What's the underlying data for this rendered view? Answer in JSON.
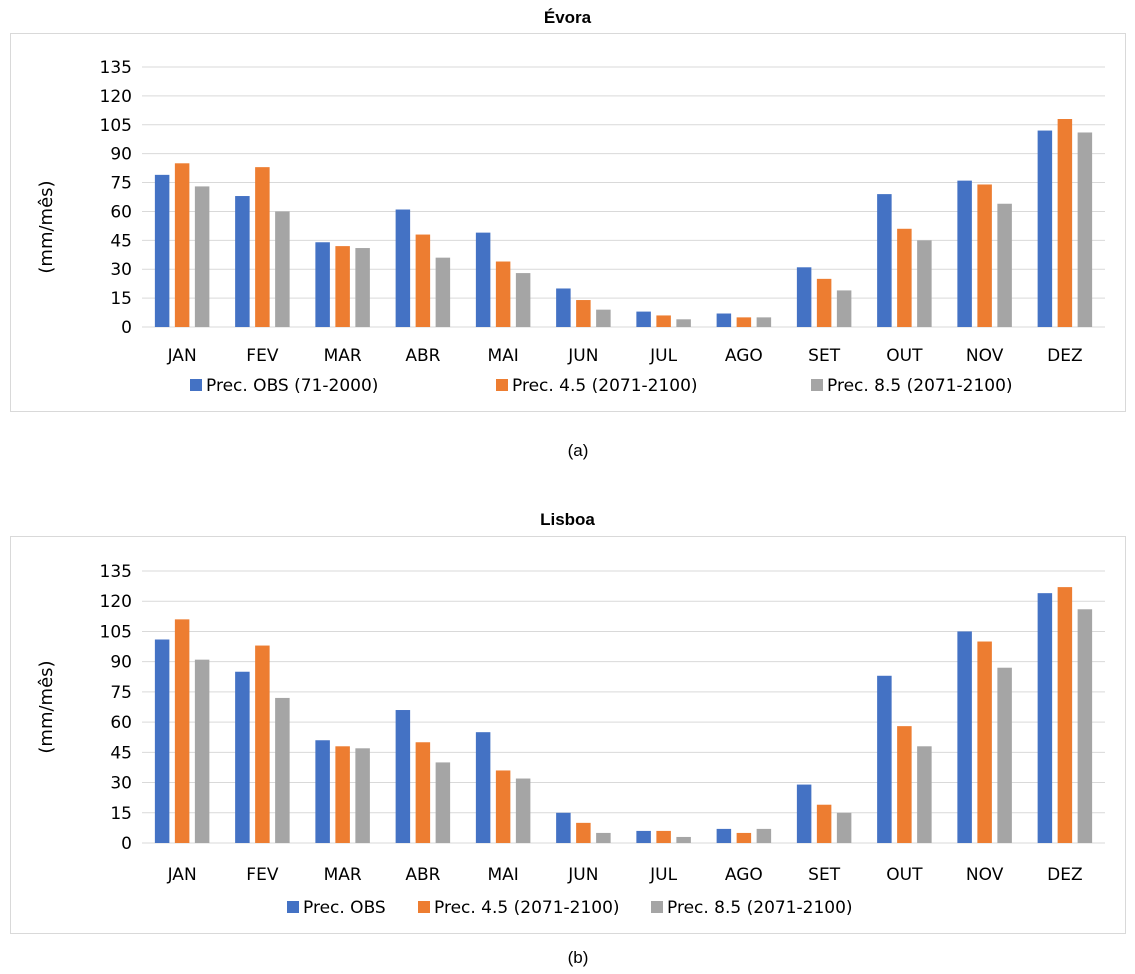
{
  "colors": {
    "obs": "#4472c4",
    "rcp45": "#ed7d31",
    "rcp85": "#a5a5a5",
    "grid": "#d9d9d9",
    "axis_text": "#000000"
  },
  "captions": [
    "(a)",
    "(b)"
  ],
  "chart_data": [
    {
      "type": "bar",
      "title": "Évora",
      "ylabel": "(mm/mês)",
      "xlabel": "",
      "ylim": [
        0,
        135
      ],
      "yticks": [
        0,
        15,
        30,
        45,
        60,
        75,
        90,
        105,
        120,
        135
      ],
      "categories": [
        "JAN",
        "FEV",
        "MAR",
        "ABR",
        "MAI",
        "JUN",
        "JUL",
        "AGO",
        "SET",
        "OUT",
        "NOV",
        "DEZ"
      ],
      "grid": true,
      "legend_position": "bottom",
      "series": [
        {
          "name": "Prec. OBS (71-2000)",
          "color": "obs",
          "values": [
            79,
            68,
            44,
            61,
            49,
            20,
            8,
            7,
            31,
            69,
            76,
            102
          ]
        },
        {
          "name": "Prec. 4.5 (2071-2100)",
          "color": "rcp45",
          "values": [
            85,
            83,
            42,
            48,
            34,
            14,
            6,
            5,
            25,
            51,
            74,
            108
          ]
        },
        {
          "name": "Prec. 8.5 (2071-2100)",
          "color": "rcp85",
          "values": [
            73,
            60,
            41,
            36,
            28,
            9,
            4,
            5,
            19,
            45,
            64,
            101
          ]
        }
      ]
    },
    {
      "type": "bar",
      "title": "Lisboa",
      "ylabel": "(mm/mês)",
      "xlabel": "",
      "ylim": [
        0,
        135
      ],
      "yticks": [
        0,
        15,
        30,
        45,
        60,
        75,
        90,
        105,
        120,
        135
      ],
      "categories": [
        "JAN",
        "FEV",
        "MAR",
        "ABR",
        "MAI",
        "JUN",
        "JUL",
        "AGO",
        "SET",
        "OUT",
        "NOV",
        "DEZ"
      ],
      "grid": true,
      "legend_position": "bottom",
      "series": [
        {
          "name": "Prec. OBS",
          "color": "obs",
          "values": [
            101,
            85,
            51,
            66,
            55,
            15,
            6,
            7,
            29,
            83,
            105,
            124
          ]
        },
        {
          "name": "Prec. 4.5 (2071-2100)",
          "color": "rcp45",
          "values": [
            111,
            98,
            48,
            50,
            36,
            10,
            6,
            5,
            19,
            58,
            100,
            127
          ]
        },
        {
          "name": "Prec. 8.5 (2071-2100)",
          "color": "rcp85",
          "values": [
            91,
            72,
            47,
            40,
            32,
            5,
            3,
            7,
            15,
            48,
            87,
            116
          ]
        }
      ]
    }
  ]
}
